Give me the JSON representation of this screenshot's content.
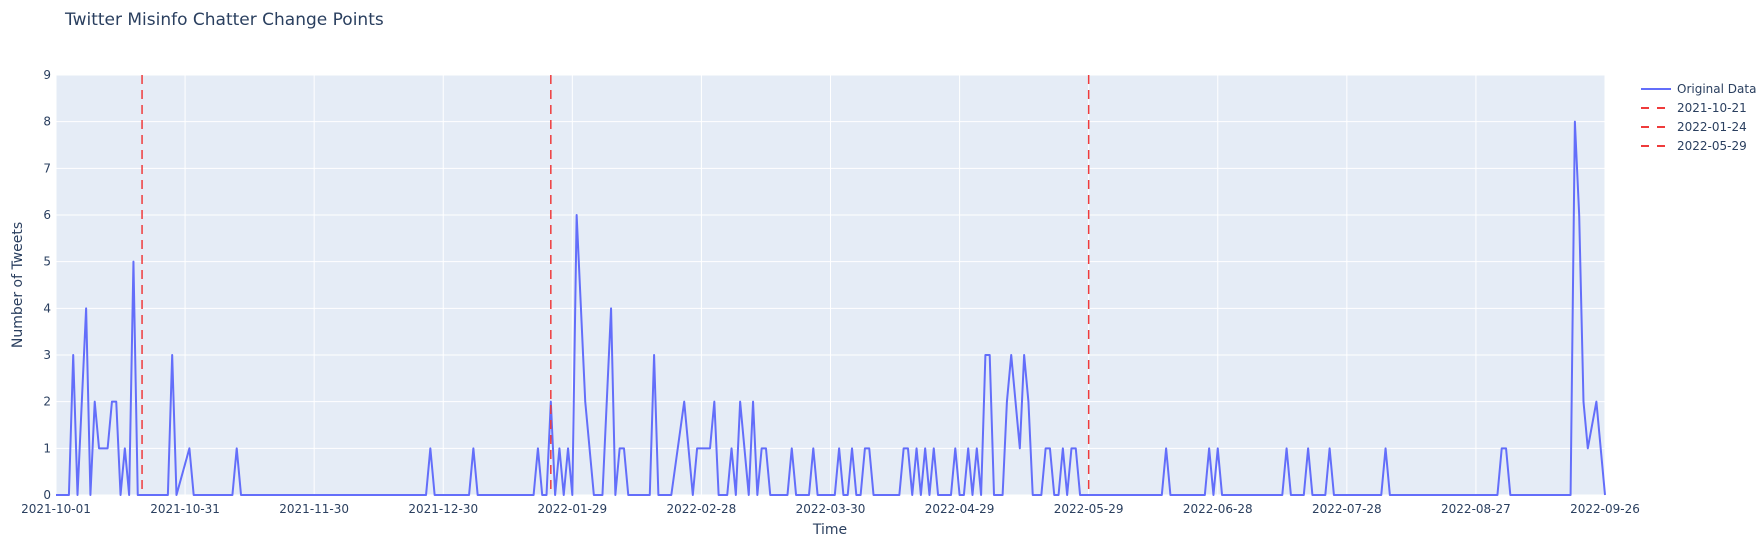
{
  "chart_data": {
    "type": "line",
    "title": "Twitter Misinfo Chatter Change Points",
    "xlabel": "Time",
    "ylabel": "Number of Tweets",
    "x_range": [
      "2021-10-01",
      "2022-09-26"
    ],
    "ylim": [
      0,
      9
    ],
    "x_ticks": [
      "2021-10-01",
      "2021-10-31",
      "2021-11-30",
      "2021-12-30",
      "2022-01-29",
      "2022-02-28",
      "2022-03-30",
      "2022-04-29",
      "2022-05-29",
      "2022-06-28",
      "2022-07-28",
      "2022-08-27",
      "2022-09-26"
    ],
    "y_ticks": [
      0,
      1,
      2,
      3,
      4,
      5,
      6,
      7,
      8,
      9
    ],
    "grid": true,
    "legend_position": "top-right",
    "colors": {
      "plot_bg": "#e5ecf6",
      "series": "#636efa",
      "change_point": "#ef3b3b",
      "grid": "#ffffff",
      "text": "#2a3f5f"
    },
    "series": [
      {
        "name": "Original Data",
        "points": [
          [
            "2021-10-01",
            0
          ],
          [
            "2021-10-04",
            0
          ],
          [
            "2021-10-05",
            3
          ],
          [
            "2021-10-06",
            0
          ],
          [
            "2021-10-08",
            4
          ],
          [
            "2021-10-09",
            0
          ],
          [
            "2021-10-10",
            2
          ],
          [
            "2021-10-11",
            1
          ],
          [
            "2021-10-13",
            1
          ],
          [
            "2021-10-14",
            2
          ],
          [
            "2021-10-15",
            2
          ],
          [
            "2021-10-16",
            0
          ],
          [
            "2021-10-17",
            1
          ],
          [
            "2021-10-18",
            0
          ],
          [
            "2021-10-19",
            5
          ],
          [
            "2021-10-20",
            0
          ],
          [
            "2021-10-27",
            0
          ],
          [
            "2021-10-28",
            3
          ],
          [
            "2021-10-29",
            0
          ],
          [
            "2021-11-01",
            1
          ],
          [
            "2021-11-02",
            0
          ],
          [
            "2021-11-11",
            0
          ],
          [
            "2021-11-12",
            1
          ],
          [
            "2021-11-13",
            0
          ],
          [
            "2021-12-26",
            0
          ],
          [
            "2021-12-27",
            1
          ],
          [
            "2021-12-28",
            0
          ],
          [
            "2022-01-05",
            0
          ],
          [
            "2022-01-06",
            1
          ],
          [
            "2022-01-07",
            0
          ],
          [
            "2022-01-20",
            0
          ],
          [
            "2022-01-21",
            1
          ],
          [
            "2022-01-22",
            0
          ],
          [
            "2022-01-23",
            0
          ],
          [
            "2022-01-24",
            2
          ],
          [
            "2022-01-25",
            0
          ],
          [
            "2022-01-26",
            1
          ],
          [
            "2022-01-27",
            0
          ],
          [
            "2022-01-28",
            1
          ],
          [
            "2022-01-29",
            0
          ],
          [
            "2022-01-30",
            6
          ],
          [
            "2022-02-01",
            2
          ],
          [
            "2022-02-03",
            0
          ],
          [
            "2022-02-05",
            0
          ],
          [
            "2022-02-07",
            4
          ],
          [
            "2022-02-08",
            0
          ],
          [
            "2022-02-09",
            1
          ],
          [
            "2022-02-10",
            1
          ],
          [
            "2022-02-11",
            0
          ],
          [
            "2022-02-16",
            0
          ],
          [
            "2022-02-17",
            3
          ],
          [
            "2022-02-18",
            0
          ],
          [
            "2022-02-21",
            0
          ],
          [
            "2022-02-24",
            2
          ],
          [
            "2022-02-26",
            0
          ],
          [
            "2022-02-27",
            1
          ],
          [
            "2022-03-02",
            1
          ],
          [
            "2022-03-03",
            2
          ],
          [
            "2022-03-04",
            0
          ],
          [
            "2022-03-06",
            0
          ],
          [
            "2022-03-07",
            1
          ],
          [
            "2022-03-08",
            0
          ],
          [
            "2022-03-09",
            2
          ],
          [
            "2022-03-11",
            0
          ],
          [
            "2022-03-12",
            2
          ],
          [
            "2022-03-13",
            0
          ],
          [
            "2022-03-14",
            1
          ],
          [
            "2022-03-15",
            1
          ],
          [
            "2022-03-16",
            0
          ],
          [
            "2022-03-20",
            0
          ],
          [
            "2022-03-21",
            1
          ],
          [
            "2022-03-22",
            0
          ],
          [
            "2022-03-25",
            0
          ],
          [
            "2022-03-26",
            1
          ],
          [
            "2022-03-27",
            0
          ],
          [
            "2022-03-31",
            0
          ],
          [
            "2022-04-01",
            1
          ],
          [
            "2022-04-02",
            0
          ],
          [
            "2022-04-03",
            0
          ],
          [
            "2022-04-04",
            1
          ],
          [
            "2022-04-05",
            0
          ],
          [
            "2022-04-06",
            0
          ],
          [
            "2022-04-07",
            1
          ],
          [
            "2022-04-08",
            1
          ],
          [
            "2022-04-09",
            0
          ],
          [
            "2022-04-15",
            0
          ],
          [
            "2022-04-16",
            1
          ],
          [
            "2022-04-17",
            1
          ],
          [
            "2022-04-18",
            0
          ],
          [
            "2022-04-19",
            1
          ],
          [
            "2022-04-20",
            0
          ],
          [
            "2022-04-21",
            1
          ],
          [
            "2022-04-22",
            0
          ],
          [
            "2022-04-23",
            1
          ],
          [
            "2022-04-24",
            0
          ],
          [
            "2022-04-27",
            0
          ],
          [
            "2022-04-28",
            1
          ],
          [
            "2022-04-29",
            0
          ],
          [
            "2022-04-30",
            0
          ],
          [
            "2022-05-01",
            1
          ],
          [
            "2022-05-02",
            0
          ],
          [
            "2022-05-03",
            1
          ],
          [
            "2022-05-04",
            0
          ],
          [
            "2022-05-05",
            3
          ],
          [
            "2022-05-06",
            3
          ],
          [
            "2022-05-07",
            0
          ],
          [
            "2022-05-08",
            0
          ],
          [
            "2022-05-09",
            0
          ],
          [
            "2022-05-10",
            2
          ],
          [
            "2022-05-11",
            3
          ],
          [
            "2022-05-13",
            1
          ],
          [
            "2022-05-14",
            3
          ],
          [
            "2022-05-15",
            2
          ],
          [
            "2022-05-16",
            0
          ],
          [
            "2022-05-17",
            0
          ],
          [
            "2022-05-18",
            0
          ],
          [
            "2022-05-19",
            1
          ],
          [
            "2022-05-20",
            1
          ],
          [
            "2022-05-21",
            0
          ],
          [
            "2022-05-22",
            0
          ],
          [
            "2022-05-23",
            1
          ],
          [
            "2022-05-24",
            0
          ],
          [
            "2022-05-25",
            1
          ],
          [
            "2022-05-26",
            1
          ],
          [
            "2022-05-27",
            0
          ],
          [
            "2022-06-15",
            0
          ],
          [
            "2022-06-16",
            1
          ],
          [
            "2022-06-17",
            0
          ],
          [
            "2022-06-25",
            0
          ],
          [
            "2022-06-26",
            1
          ],
          [
            "2022-06-27",
            0
          ],
          [
            "2022-06-28",
            1
          ],
          [
            "2022-06-29",
            0
          ],
          [
            "2022-07-13",
            0
          ],
          [
            "2022-07-14",
            1
          ],
          [
            "2022-07-15",
            0
          ],
          [
            "2022-07-18",
            0
          ],
          [
            "2022-07-19",
            1
          ],
          [
            "2022-07-20",
            0
          ],
          [
            "2022-07-23",
            0
          ],
          [
            "2022-07-24",
            1
          ],
          [
            "2022-07-25",
            0
          ],
          [
            "2022-08-05",
            0
          ],
          [
            "2022-08-06",
            1
          ],
          [
            "2022-08-07",
            0
          ],
          [
            "2022-09-01",
            0
          ],
          [
            "2022-09-02",
            1
          ],
          [
            "2022-09-03",
            1
          ],
          [
            "2022-09-04",
            0
          ],
          [
            "2022-09-18",
            0
          ],
          [
            "2022-09-19",
            8
          ],
          [
            "2022-09-20",
            6
          ],
          [
            "2022-09-21",
            2
          ],
          [
            "2022-09-22",
            1
          ],
          [
            "2022-09-24",
            2
          ],
          [
            "2022-09-26",
            0
          ]
        ]
      },
      {
        "name": "2021-10-21",
        "vline": "2021-10-21"
      },
      {
        "name": "2022-01-24",
        "vline": "2022-01-24"
      },
      {
        "name": "2022-05-29",
        "vline": "2022-05-29"
      }
    ]
  }
}
